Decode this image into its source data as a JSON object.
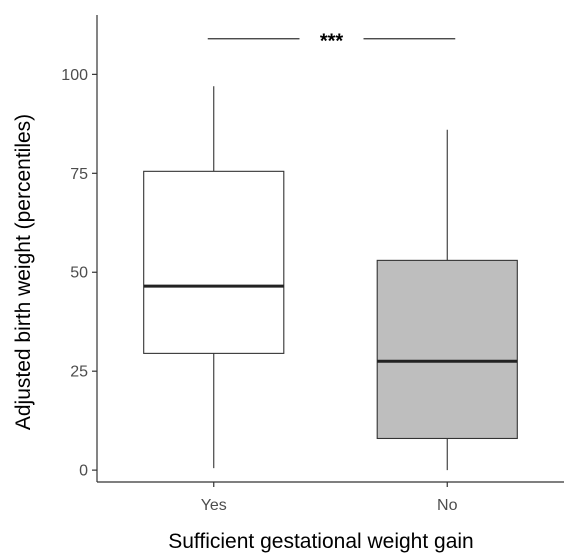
{
  "chart_data": {
    "type": "box",
    "xlabel": "Sufficient gestational weight gain",
    "ylabel": "Adjusted birth weight (percentiles)",
    "ylim": [
      -3,
      115
    ],
    "yticks": [
      0,
      25,
      50,
      75,
      100
    ],
    "categories": [
      "Yes",
      "No"
    ],
    "boxes": [
      {
        "category": "Yes",
        "whisker_low": 0.5,
        "q1": 29.5,
        "median": 46.5,
        "q3": 75.5,
        "whisker_high": 97,
        "fill": "#ffffff"
      },
      {
        "category": "No",
        "whisker_low": 0,
        "q1": 8,
        "median": 27.5,
        "q3": 53,
        "whisker_high": 86,
        "fill": "#bebebe"
      }
    ],
    "annotation": {
      "label": "***",
      "y": 109,
      "between": [
        "Yes",
        "No"
      ]
    },
    "grid": false
  }
}
